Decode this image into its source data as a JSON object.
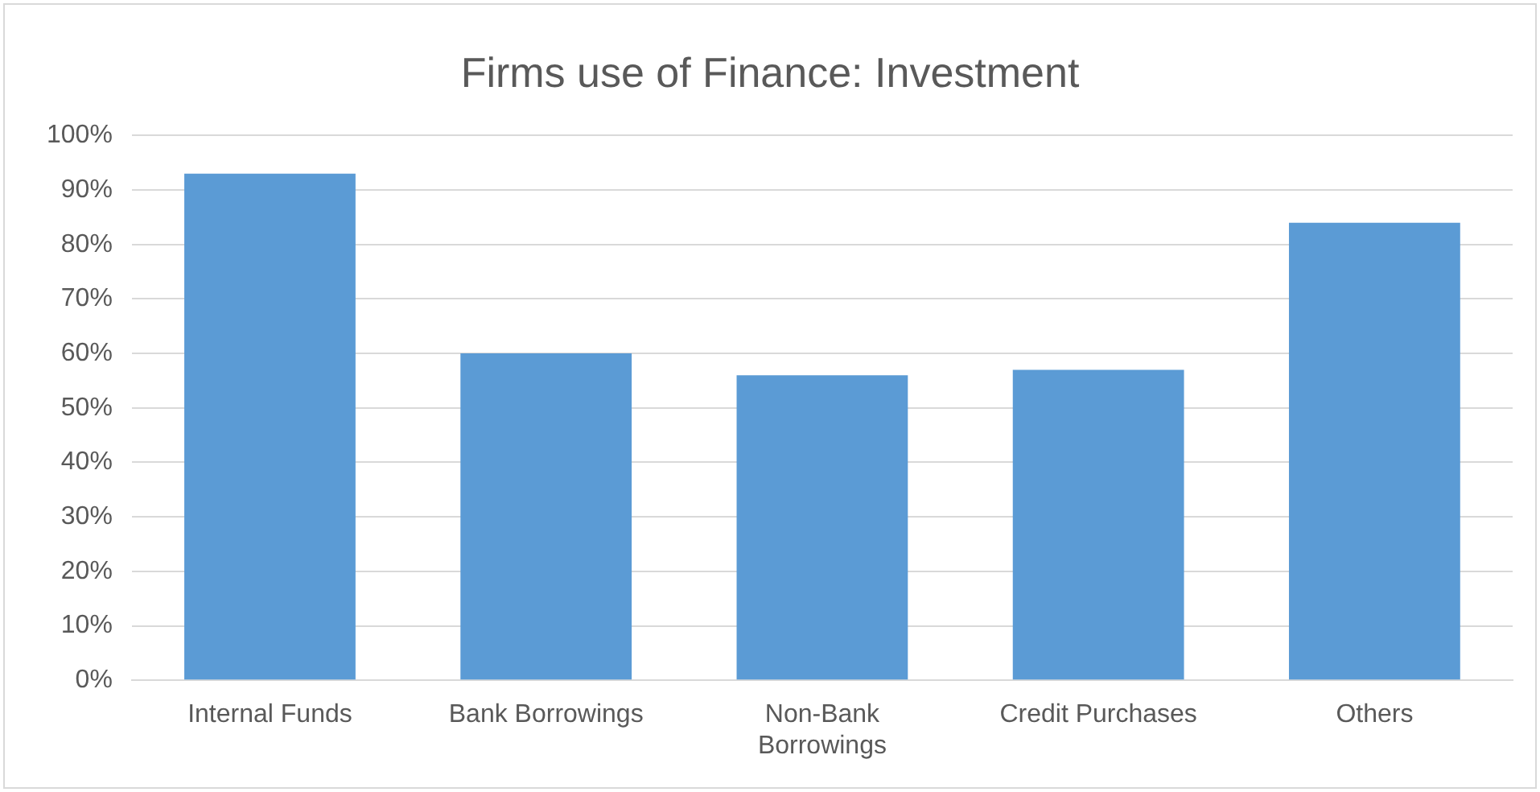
{
  "chart_data": {
    "type": "bar",
    "title": "Firms use of Finance: Investment",
    "categories": [
      "Internal Funds",
      "Bank Borrowings",
      "Non-Bank Borrowings",
      "Credit Purchases",
      "Others"
    ],
    "values": [
      93,
      60,
      56,
      57,
      84
    ],
    "color": "#5b9bd5",
    "ylim": [
      0,
      100
    ],
    "yticks": [
      {
        "value": 0,
        "label": "0%"
      },
      {
        "value": 10,
        "label": "10%"
      },
      {
        "value": 20,
        "label": "20%"
      },
      {
        "value": 30,
        "label": "30%"
      },
      {
        "value": 40,
        "label": "40%"
      },
      {
        "value": 50,
        "label": "50%"
      },
      {
        "value": 60,
        "label": "60%"
      },
      {
        "value": 70,
        "label": "70%"
      },
      {
        "value": 80,
        "label": "80%"
      },
      {
        "value": 90,
        "label": "90%"
      },
      {
        "value": 100,
        "label": "100%"
      }
    ],
    "grid": "y",
    "legend": false
  }
}
